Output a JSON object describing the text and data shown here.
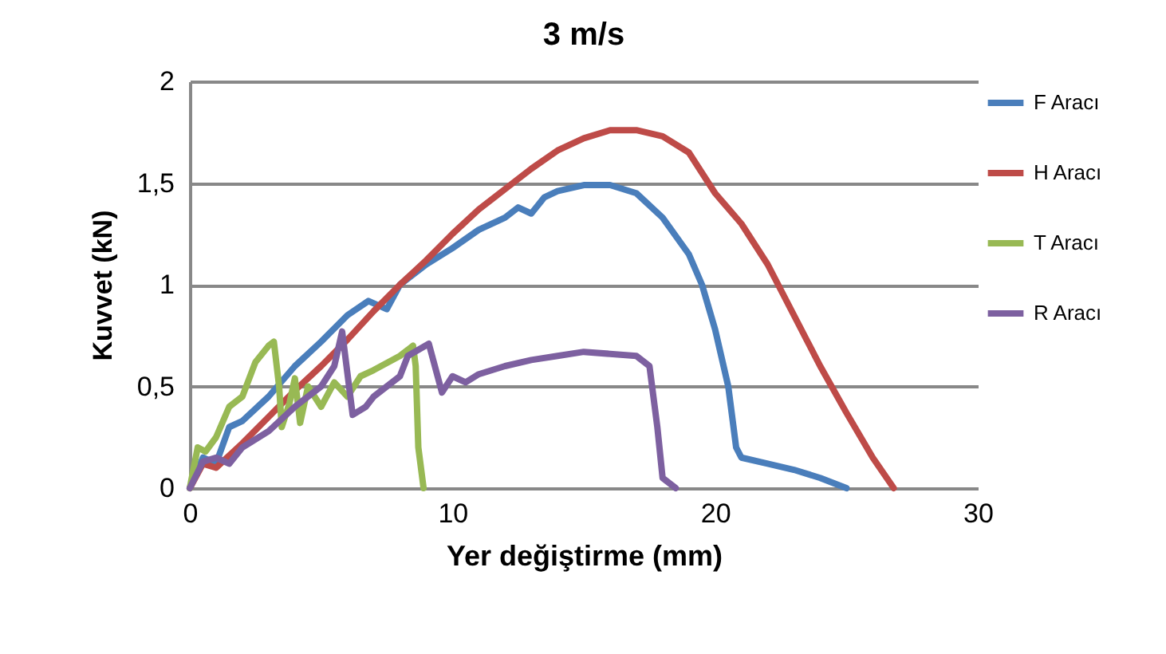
{
  "chart_data": {
    "type": "line",
    "title": "3 m/s",
    "xlabel": "Yer değiştirme (mm)",
    "ylabel": "Kuvvet (kN)",
    "xlim": [
      0,
      30
    ],
    "xticks": [
      0,
      10,
      20,
      30
    ],
    "ylim": [
      0,
      2
    ],
    "yticks": [
      0,
      {
        "value": 0.5,
        "label": "0,5"
      },
      1,
      {
        "value": 1.5,
        "label": "1,5"
      },
      2
    ],
    "grid": "y",
    "legend": "right",
    "series": [
      {
        "name": "F Aracı",
        "color": "#4a7ebb",
        "x": [
          0,
          0.5,
          1,
          1.5,
          2,
          3,
          4,
          5,
          6,
          6.8,
          7.5,
          8,
          9,
          10,
          11,
          12,
          12.5,
          13,
          13.5,
          14,
          15,
          16,
          17,
          18,
          19,
          19.5,
          20,
          20.5,
          20.8,
          21,
          22,
          23,
          24,
          25
        ],
        "values": [
          0,
          0.15,
          0.12,
          0.3,
          0.33,
          0.45,
          0.6,
          0.72,
          0.85,
          0.92,
          0.88,
          1.0,
          1.1,
          1.18,
          1.27,
          1.33,
          1.38,
          1.35,
          1.43,
          1.46,
          1.49,
          1.49,
          1.45,
          1.33,
          1.15,
          1.0,
          0.78,
          0.5,
          0.2,
          0.15,
          0.12,
          0.09,
          0.05,
          0
        ]
      },
      {
        "name": "H Aracı",
        "color": "#be4b48",
        "x": [
          0,
          0.5,
          1,
          2,
          3,
          4,
          5,
          6,
          7,
          8,
          9,
          10,
          11,
          12,
          13,
          14,
          15,
          16,
          17,
          18,
          19,
          20,
          21,
          22,
          23,
          24,
          25,
          26,
          26.8
        ],
        "values": [
          0,
          0.12,
          0.1,
          0.22,
          0.35,
          0.48,
          0.6,
          0.73,
          0.87,
          1.0,
          1.12,
          1.25,
          1.37,
          1.47,
          1.57,
          1.66,
          1.72,
          1.76,
          1.76,
          1.73,
          1.65,
          1.45,
          1.3,
          1.1,
          0.85,
          0.6,
          0.37,
          0.15,
          0
        ]
      },
      {
        "name": "T Aracı",
        "color": "#98b954",
        "x": [
          0,
          0.3,
          0.6,
          1,
          1.5,
          2,
          2.5,
          3,
          3.2,
          3.4,
          3.5,
          3.8,
          4,
          4.2,
          4.5,
          5,
          5.5,
          6,
          6.5,
          7,
          8,
          8.5,
          8.6,
          8.7,
          8.9
        ],
        "values": [
          0,
          0.2,
          0.18,
          0.25,
          0.4,
          0.45,
          0.62,
          0.7,
          0.72,
          0.5,
          0.3,
          0.42,
          0.54,
          0.32,
          0.5,
          0.4,
          0.52,
          0.45,
          0.55,
          0.58,
          0.65,
          0.7,
          0.6,
          0.2,
          0
        ]
      },
      {
        "name": "R Aracı",
        "color": "#7d60a0",
        "x": [
          0,
          0.5,
          1,
          1.5,
          2,
          3,
          4,
          5,
          5.5,
          5.8,
          6.2,
          6.7,
          7,
          7.5,
          8,
          8.3,
          9.1,
          9.6,
          10,
          10.5,
          11,
          12,
          13,
          14,
          15,
          16,
          17,
          17.5,
          17.8,
          18,
          18.5
        ],
        "values": [
          0,
          0.13,
          0.15,
          0.12,
          0.2,
          0.28,
          0.4,
          0.5,
          0.6,
          0.77,
          0.36,
          0.4,
          0.45,
          0.5,
          0.55,
          0.65,
          0.71,
          0.47,
          0.55,
          0.52,
          0.56,
          0.6,
          0.63,
          0.65,
          0.67,
          0.66,
          0.65,
          0.6,
          0.3,
          0.05,
          0
        ]
      }
    ]
  }
}
